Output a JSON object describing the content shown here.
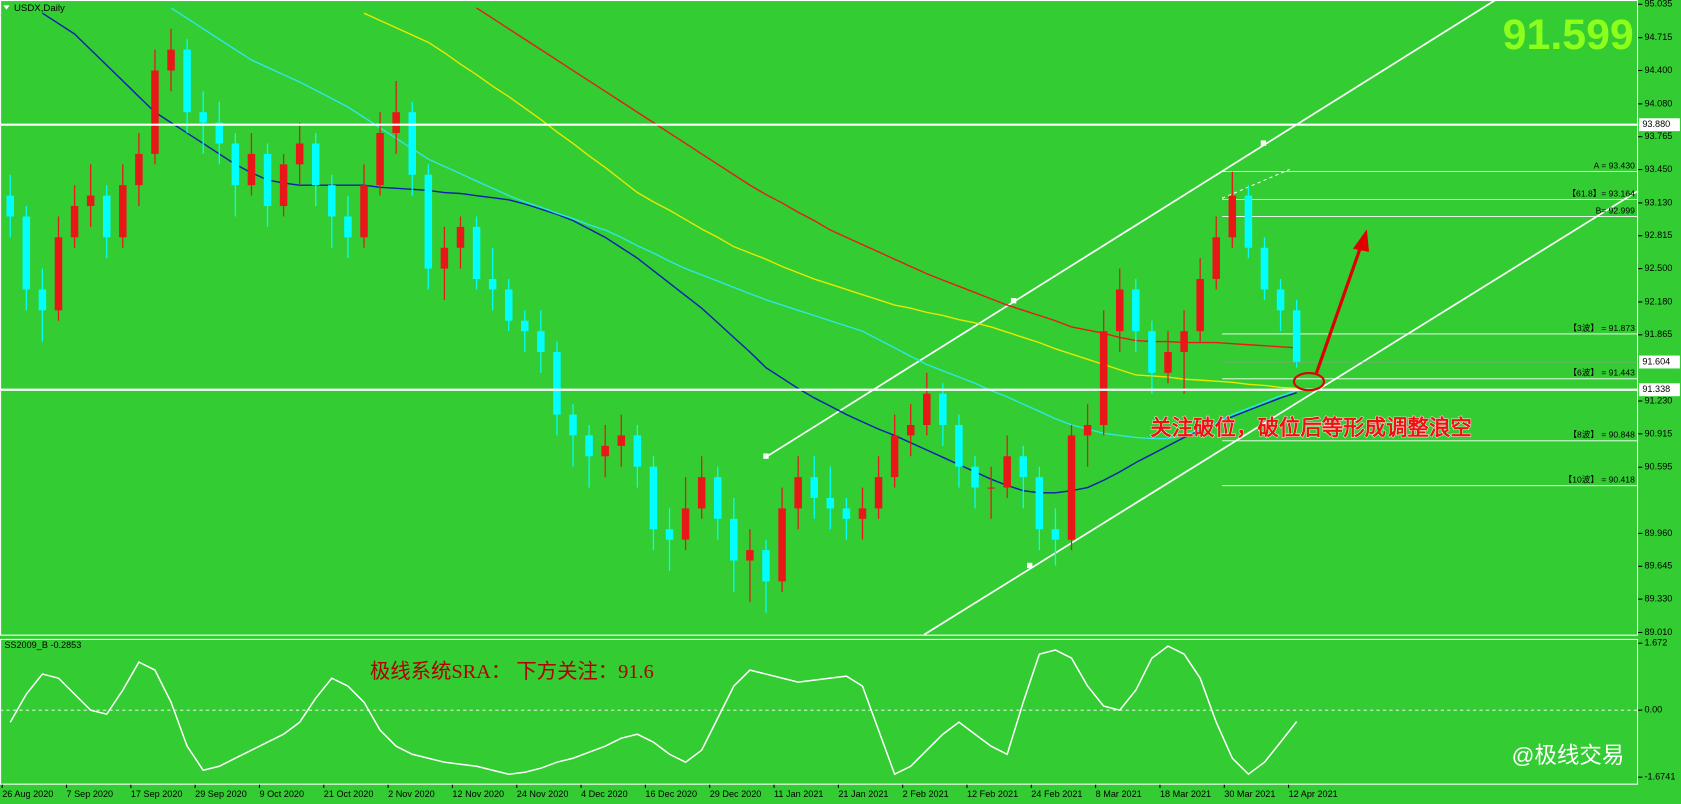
{
  "chart_data": [
    {
      "type": "candlestick",
      "title": "USDX,Daily",
      "bid_label": "91.599",
      "up_color": "#e81818",
      "down_color": "#00ffff",
      "categories": [
        "26 Aug 2020",
        null,
        null,
        null,
        "7 Sep 2020",
        null,
        null,
        null,
        "17 Sep 2020",
        null,
        null,
        null,
        "29 Sep 2020",
        null,
        null,
        null,
        "9 Oct 2020",
        null,
        null,
        null,
        "21 Oct 2020",
        null,
        null,
        null,
        "2 Nov 2020",
        null,
        null,
        null,
        "12 Nov 2020",
        null,
        null,
        null,
        "24 Nov 2020",
        null,
        null,
        null,
        "4 Dec 2020",
        null,
        null,
        null,
        "16 Dec 2020",
        null,
        null,
        null,
        "29 Dec 2020",
        null,
        null,
        null,
        "11 Jan 2021",
        null,
        null,
        null,
        "21 Jan 2021",
        null,
        null,
        null,
        "2 Feb 2021",
        null,
        null,
        null,
        "12 Feb 2021",
        null,
        null,
        null,
        "24 Feb 2021",
        null,
        null,
        null,
        "8 Mar 2021",
        null,
        null,
        null,
        "18 Mar 2021",
        null,
        null,
        null,
        "30 Mar 2021",
        null,
        null,
        null,
        "12 Apr 2021"
      ],
      "candles": [
        [
          93.2,
          93.4,
          92.8,
          93.0
        ],
        [
          93.0,
          93.1,
          92.1,
          92.3
        ],
        [
          92.3,
          92.5,
          91.8,
          92.1
        ],
        [
          92.1,
          93.0,
          92.0,
          92.8
        ],
        [
          92.8,
          93.3,
          92.7,
          93.1
        ],
        [
          93.1,
          93.5,
          92.9,
          93.2
        ],
        [
          93.2,
          93.3,
          92.6,
          92.8
        ],
        [
          92.8,
          93.5,
          92.7,
          93.3
        ],
        [
          93.3,
          93.8,
          93.1,
          93.6
        ],
        [
          93.6,
          94.6,
          93.5,
          94.4
        ],
        [
          94.4,
          94.8,
          94.2,
          94.6
        ],
        [
          94.6,
          94.7,
          93.8,
          94.0
        ],
        [
          94.0,
          94.2,
          93.6,
          93.9
        ],
        [
          93.9,
          94.1,
          93.5,
          93.7
        ],
        [
          93.7,
          93.8,
          93.0,
          93.3
        ],
        [
          93.3,
          93.8,
          93.2,
          93.6
        ],
        [
          93.6,
          93.7,
          92.9,
          93.1
        ],
        [
          93.1,
          93.6,
          93.0,
          93.5
        ],
        [
          93.5,
          93.9,
          93.3,
          93.7
        ],
        [
          93.7,
          93.8,
          93.1,
          93.3
        ],
        [
          93.3,
          93.4,
          92.7,
          93.0
        ],
        [
          93.0,
          93.2,
          92.6,
          92.8
        ],
        [
          92.8,
          93.5,
          92.7,
          93.3
        ],
        [
          93.3,
          94.0,
          93.2,
          93.8
        ],
        [
          93.8,
          94.3,
          93.6,
          94.0
        ],
        [
          94.0,
          94.1,
          93.2,
          93.4
        ],
        [
          93.4,
          93.5,
          92.3,
          92.5
        ],
        [
          92.5,
          92.9,
          92.2,
          92.7
        ],
        [
          92.7,
          93.0,
          92.5,
          92.9
        ],
        [
          92.9,
          93.0,
          92.3,
          92.4
        ],
        [
          92.4,
          92.7,
          92.1,
          92.3
        ],
        [
          92.3,
          92.4,
          91.9,
          92.0
        ],
        [
          92.0,
          92.1,
          91.7,
          91.9
        ],
        [
          91.9,
          92.1,
          91.5,
          91.7
        ],
        [
          91.7,
          91.8,
          90.9,
          91.1
        ],
        [
          91.1,
          91.2,
          90.6,
          90.9
        ],
        [
          90.9,
          91.0,
          90.4,
          90.7
        ],
        [
          90.7,
          91.0,
          90.5,
          90.8
        ],
        [
          90.8,
          91.1,
          90.6,
          90.9
        ],
        [
          90.9,
          91.0,
          90.4,
          90.6
        ],
        [
          90.6,
          90.7,
          89.8,
          90.0
        ],
        [
          90.0,
          90.2,
          89.6,
          89.9
        ],
        [
          89.9,
          90.5,
          89.8,
          90.2
        ],
        [
          90.2,
          90.7,
          90.1,
          90.5
        ],
        [
          90.5,
          90.6,
          89.9,
          90.1
        ],
        [
          90.1,
          90.3,
          89.4,
          89.7
        ],
        [
          89.7,
          90.0,
          89.3,
          89.8
        ],
        [
          89.8,
          89.9,
          89.2,
          89.5
        ],
        [
          89.5,
          90.4,
          89.4,
          90.2
        ],
        [
          90.2,
          90.7,
          90.0,
          90.5
        ],
        [
          90.5,
          90.7,
          90.1,
          90.3
        ],
        [
          90.3,
          90.6,
          90.0,
          90.2
        ],
        [
          90.2,
          90.3,
          89.9,
          90.1
        ],
        [
          90.1,
          90.4,
          89.9,
          90.2
        ],
        [
          90.2,
          90.7,
          90.1,
          90.5
        ],
        [
          90.5,
          91.1,
          90.4,
          90.9
        ],
        [
          90.9,
          91.2,
          90.7,
          91.0
        ],
        [
          91.0,
          91.5,
          90.9,
          91.3
        ],
        [
          91.3,
          91.4,
          90.8,
          91.0
        ],
        [
          91.0,
          91.1,
          90.4,
          90.6
        ],
        [
          90.6,
          90.7,
          90.2,
          90.4
        ],
        [
          90.4,
          90.6,
          90.1,
          90.4
        ],
        [
          90.4,
          90.9,
          90.3,
          90.7
        ],
        [
          90.7,
          90.8,
          90.2,
          90.5
        ],
        [
          90.5,
          90.6,
          89.8,
          90.0
        ],
        [
          90.0,
          90.2,
          89.65,
          89.9
        ],
        [
          89.9,
          91.0,
          89.8,
          90.9
        ],
        [
          90.9,
          91.2,
          90.6,
          91.0
        ],
        [
          91.0,
          92.1,
          90.9,
          91.9
        ],
        [
          91.9,
          92.5,
          91.7,
          92.3
        ],
        [
          92.3,
          92.4,
          91.7,
          91.9
        ],
        [
          91.9,
          92.0,
          91.3,
          91.5
        ],
        [
          91.5,
          91.9,
          91.4,
          91.7
        ],
        [
          91.7,
          92.1,
          91.3,
          91.9
        ],
        [
          91.9,
          92.6,
          91.8,
          92.4
        ],
        [
          92.4,
          93.0,
          92.3,
          92.8
        ],
        [
          92.8,
          93.43,
          92.7,
          93.2
        ],
        [
          93.2,
          93.3,
          92.6,
          92.7
        ],
        [
          92.7,
          92.8,
          92.2,
          92.3
        ],
        [
          92.3,
          92.4,
          91.9,
          92.1
        ],
        [
          92.1,
          92.2,
          91.55,
          91.6
        ]
      ],
      "overlays": [
        {
          "color": "#0a1fb0",
          "values": [
            null,
            null,
            94.95,
            94.85,
            94.75,
            94.6,
            94.45,
            94.3,
            94.15,
            94.0,
            93.9,
            93.8,
            93.7,
            93.6,
            93.5,
            93.42,
            93.35,
            93.32,
            93.3,
            93.3,
            93.3,
            93.3,
            93.3,
            93.28,
            93.27,
            93.26,
            93.25,
            93.23,
            93.22,
            93.2,
            93.18,
            93.16,
            93.12,
            93.07,
            93.02,
            92.96,
            92.88,
            92.8,
            92.7,
            92.6,
            92.48,
            92.36,
            92.24,
            92.12,
            91.98,
            91.84,
            91.7,
            91.55,
            91.45,
            91.35,
            91.26,
            91.18,
            91.1,
            91.03,
            90.96,
            90.9,
            90.83,
            90.76,
            90.69,
            90.62,
            90.55,
            90.48,
            90.42,
            90.37,
            90.35,
            90.35,
            90.37,
            90.4,
            90.47,
            90.55,
            90.64,
            90.72,
            90.8,
            90.88,
            90.95,
            91.02,
            91.08,
            91.14,
            91.2,
            91.26,
            91.31
          ]
        },
        {
          "color": "#2ee6e6",
          "values": [
            null,
            null,
            null,
            null,
            null,
            null,
            null,
            null,
            null,
            null,
            95.0,
            94.9,
            94.8,
            94.7,
            94.6,
            94.5,
            94.43,
            94.36,
            94.29,
            94.21,
            94.13,
            94.05,
            93.95,
            93.85,
            93.75,
            93.65,
            93.55,
            93.48,
            93.41,
            93.34,
            93.27,
            93.2,
            93.14,
            93.09,
            93.03,
            92.98,
            92.92,
            92.87,
            92.8,
            92.72,
            92.65,
            92.57,
            92.5,
            92.44,
            92.38,
            92.32,
            92.26,
            92.2,
            92.15,
            92.1,
            92.05,
            92.0,
            91.95,
            91.9,
            91.82,
            91.74,
            91.66,
            91.58,
            91.52,
            91.46,
            91.4,
            91.33,
            91.27,
            91.2,
            91.13,
            91.06,
            91.0,
            90.96,
            90.92,
            90.9,
            90.88,
            90.87,
            90.87,
            90.9,
            90.96,
            91.02,
            91.1,
            91.16,
            91.22,
            91.28,
            91.33
          ]
        },
        {
          "color": "#e8e800",
          "values": [
            null,
            null,
            null,
            null,
            null,
            null,
            null,
            null,
            null,
            null,
            null,
            null,
            null,
            null,
            null,
            null,
            null,
            null,
            null,
            null,
            null,
            null,
            94.95,
            94.88,
            94.81,
            94.74,
            94.67,
            94.57,
            94.46,
            94.36,
            94.25,
            94.15,
            94.04,
            93.93,
            93.81,
            93.7,
            93.58,
            93.47,
            93.35,
            93.23,
            93.14,
            93.06,
            92.97,
            92.88,
            92.8,
            92.71,
            92.65,
            92.59,
            92.52,
            92.46,
            92.4,
            92.35,
            92.3,
            92.25,
            92.2,
            92.15,
            92.12,
            92.08,
            92.05,
            92.01,
            91.98,
            91.94,
            91.89,
            91.84,
            91.79,
            91.73,
            91.68,
            91.63,
            91.58,
            91.53,
            91.48,
            91.47,
            91.46,
            91.44,
            91.43,
            91.42,
            91.41,
            91.39,
            91.38,
            91.36,
            91.35
          ]
        },
        {
          "color": "#e81a1a",
          "values": [
            null,
            null,
            null,
            null,
            null,
            null,
            null,
            null,
            null,
            null,
            null,
            null,
            null,
            null,
            null,
            null,
            null,
            null,
            null,
            null,
            null,
            null,
            null,
            null,
            null,
            null,
            null,
            null,
            null,
            95.0,
            94.9,
            94.8,
            94.7,
            94.6,
            94.5,
            94.4,
            94.3,
            94.2,
            94.1,
            94.0,
            93.9,
            93.8,
            93.7,
            93.6,
            93.5,
            93.4,
            93.3,
            93.21,
            93.13,
            93.04,
            92.96,
            92.87,
            92.8,
            92.73,
            92.66,
            92.59,
            92.52,
            92.45,
            92.39,
            92.33,
            92.27,
            92.21,
            92.15,
            92.1,
            92.05,
            92.0,
            91.94,
            91.91,
            91.88,
            91.84,
            91.81,
            91.8,
            91.8,
            91.79,
            91.79,
            91.79,
            91.78,
            91.77,
            91.76,
            91.75,
            91.74
          ]
        }
      ],
      "hlines": [
        {
          "value": 93.88,
          "label": "93.880"
        },
        {
          "value": 91.338,
          "label": "91.338"
        }
      ],
      "last_price": {
        "value": 91.604,
        "label": "91.604"
      },
      "levels": [
        {
          "value": 93.43,
          "label": "A = 93.430"
        },
        {
          "value": 93.164,
          "label": "【61.8】= 93.164"
        },
        {
          "value": 92.999,
          "label": "B= 92.999"
        },
        {
          "value": 91.873,
          "label": "【3波】 = 91.873"
        },
        {
          "value": 91.443,
          "label": "【6波】 = 91.443"
        },
        {
          "value": 90.848,
          "label": "【8波】 = 90.848"
        },
        {
          "value": 90.418,
          "label": "【10波】 = 90.418"
        }
      ],
      "annotation": "关注破位，破位后等形成调整浪空",
      "ylim": [
        89.01,
        95.035
      ],
      "yticks": [
        95.035,
        94.715,
        {
          "value": 94.4,
          "label": "94.400"
        },
        {
          "value": 94.08,
          "label": "94.080"
        },
        93.765,
        {
          "value": 93.45,
          "label": "93.450"
        },
        {
          "value": 93.13,
          "label": "93.130"
        },
        92.815,
        {
          "value": 92.5,
          "label": "92.500"
        },
        {
          "value": 92.18,
          "label": "92.180"
        },
        91.865,
        {
          "value": 91.23,
          "label": "91.230"
        },
        90.915,
        90.595,
        {
          "value": 89.96,
          "label": "89.960"
        },
        89.645,
        {
          "value": 89.33,
          "label": "89.330"
        },
        {
          "value": 89.01,
          "label": "89.010"
        }
      ]
    },
    {
      "type": "line",
      "title": "SS2009_B -0.2853",
      "annotation": "极线系统SRA：  下方关注：91.6",
      "color": "#ffffff",
      "values": [
        -0.3,
        0.4,
        0.9,
        0.8,
        0.4,
        0.0,
        -0.1,
        0.5,
        1.2,
        1.0,
        0.2,
        -0.9,
        -1.5,
        -1.4,
        -1.2,
        -1.0,
        -0.8,
        -0.6,
        -0.3,
        0.3,
        0.8,
        0.6,
        0.2,
        -0.5,
        -0.9,
        -1.1,
        -1.2,
        -1.3,
        -1.35,
        -1.4,
        -1.5,
        -1.6,
        -1.55,
        -1.45,
        -1.3,
        -1.2,
        -1.05,
        -0.9,
        -0.7,
        -0.6,
        -0.8,
        -1.1,
        -1.3,
        -1.0,
        -0.2,
        0.6,
        1.0,
        0.9,
        0.8,
        0.7,
        0.75,
        0.8,
        0.85,
        0.6,
        -0.5,
        -1.6,
        -1.4,
        -1.0,
        -0.6,
        -0.3,
        -0.6,
        -0.9,
        -1.1,
        0.2,
        1.4,
        1.5,
        1.3,
        0.6,
        0.1,
        0.0,
        0.5,
        1.3,
        1.6,
        1.4,
        0.8,
        -0.3,
        -1.2,
        -1.6,
        -1.3,
        -0.8,
        -0.2853
      ],
      "ylim": [
        -1.6741,
        1.672
      ],
      "yticks": [
        1.672,
        {
          "value": 0,
          "label": "0.00"
        },
        -1.6741
      ]
    }
  ],
  "watermark": "@极线交易"
}
